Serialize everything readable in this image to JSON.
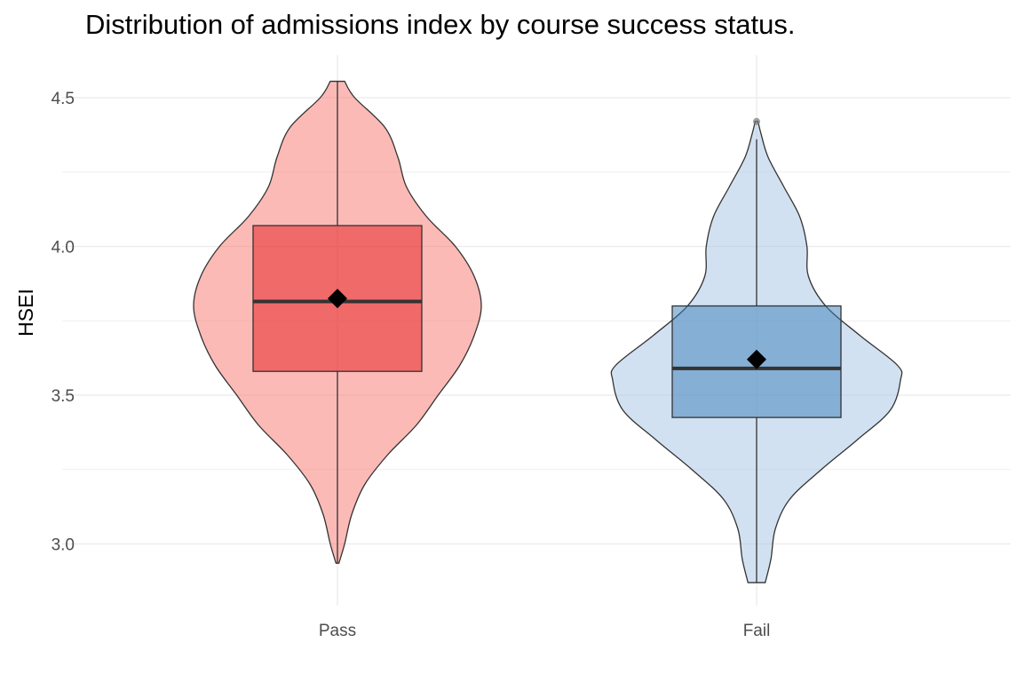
{
  "chart_data": {
    "type": "violin",
    "title": "Distribution of admissions index by course success status.",
    "xlabel": "",
    "ylabel": "HSEI",
    "ylim": [
      2.82,
      4.6
    ],
    "yticks": [
      3.0,
      3.5,
      4.0,
      4.5
    ],
    "ytick_labels": [
      "3.0",
      "3.5",
      "4.0",
      "4.5"
    ],
    "grid": true,
    "legend": "none",
    "categories": [
      "Pass",
      "Fail"
    ],
    "groups": [
      {
        "category": "Pass",
        "fill": "#F8766D",
        "box_fill": "#E41A1C",
        "violin": {
          "y": [
            2.935,
            3.0,
            3.1,
            3.2,
            3.3,
            3.4,
            3.5,
            3.6,
            3.7,
            3.8,
            3.9,
            4.0,
            4.1,
            4.2,
            4.3,
            4.4,
            4.5,
            4.555
          ],
          "half_width": [
            0.01,
            0.05,
            0.1,
            0.19,
            0.35,
            0.55,
            0.7,
            0.85,
            0.95,
            1.0,
            0.95,
            0.82,
            0.62,
            0.48,
            0.42,
            0.33,
            0.12,
            0.05
          ]
        },
        "box": {
          "lower_whisker": 2.935,
          "q1": 3.58,
          "median": 3.815,
          "q3": 4.07,
          "upper_whisker": 4.555
        },
        "mean": 3.825,
        "outliers": []
      },
      {
        "category": "Fail",
        "fill": "#A6C4E4",
        "box_fill": "#377EB8",
        "violin": {
          "y": [
            2.87,
            2.95,
            3.05,
            3.15,
            3.25,
            3.35,
            3.45,
            3.55,
            3.6,
            3.7,
            3.8,
            3.9,
            4.0,
            4.1,
            4.2,
            4.3,
            4.38,
            4.42
          ],
          "half_width": [
            0.06,
            0.1,
            0.13,
            0.23,
            0.45,
            0.7,
            0.93,
            1.0,
            0.98,
            0.72,
            0.48,
            0.36,
            0.35,
            0.3,
            0.19,
            0.08,
            0.03,
            0.01
          ]
        },
        "box": {
          "lower_whisker": 2.87,
          "q1": 3.425,
          "median": 3.59,
          "q3": 3.8,
          "upper_whisker": 4.36
        },
        "mean": 3.62,
        "outliers": [
          4.42
        ]
      }
    ]
  },
  "colors": {
    "grid": "#ebebeb",
    "outline": "#333333",
    "median": "#333333",
    "mean_marker": "#000000"
  }
}
